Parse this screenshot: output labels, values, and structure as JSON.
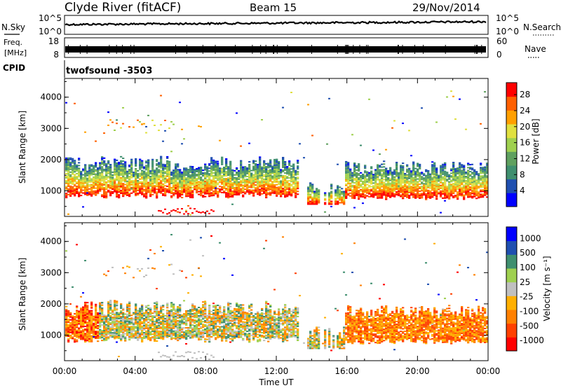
{
  "header": {
    "station": "Clyde River (fitACF)",
    "beam": "Beam 15",
    "date": "29/Nov/2014"
  },
  "panel_nsky": {
    "left_label": "N.Sky",
    "left_ticks": [
      "10^5",
      "10^0"
    ],
    "right_label": "N.Search",
    "right_ticks": [
      "10^5",
      "10^0"
    ]
  },
  "panel_freq": {
    "left_label_line1": "Freq.",
    "left_label_line2": "[MHz]",
    "left_ticks": [
      "18",
      "8"
    ],
    "right_label": "Nave",
    "right_ticks": [
      "60",
      "0"
    ]
  },
  "panel_cpid": {
    "label": "CPID",
    "program": "twofsound  -3503"
  },
  "colors": {
    "power": [
      "#0000ff",
      "#1f4fb0",
      "#3f8f6f",
      "#5fa05f",
      "#9fd04f",
      "#e0e040",
      "#ff9f00",
      "#ff6000",
      "#ff0000"
    ],
    "velocity": [
      "#0000ff",
      "#1f4fb0",
      "#3f8f6f",
      "#9fd04f",
      "#c0c0c0",
      "#ffaf00",
      "#ff8000",
      "#ff4000",
      "#ff0000"
    ]
  },
  "chart_data": [
    {
      "type": "heatmap",
      "name": "power",
      "ylabel": "Slant Range [km]",
      "xlim": [
        0,
        24
      ],
      "ylim": [
        180,
        4600
      ],
      "yticks": [
        "1000",
        "2000",
        "3000",
        "4000"
      ],
      "ytick_values": [
        1000,
        2000,
        3000,
        4000
      ],
      "colorbar_label": "Power [dB]",
      "colorbar_ticks": [
        "4",
        "8",
        "12",
        "16",
        "20",
        "24",
        "28"
      ],
      "colorbar_tick_values": [
        4,
        8,
        12,
        16,
        20,
        24,
        28
      ],
      "colorbar_range": [
        0,
        31
      ]
    },
    {
      "type": "heatmap",
      "name": "velocity",
      "ylabel": "Slant Range [km]",
      "xlabel": "Time UT",
      "xlim": [
        0,
        24
      ],
      "ylim": [
        180,
        4600
      ],
      "xticks": [
        "00:00",
        "04:00",
        "08:00",
        "12:00",
        "16:00",
        "20:00",
        "00:00"
      ],
      "xtick_values": [
        0,
        4,
        8,
        12,
        16,
        20,
        24
      ],
      "yticks": [
        "1000",
        "2000",
        "3000",
        "4000"
      ],
      "ytick_values": [
        1000,
        2000,
        3000,
        4000
      ],
      "colorbar_label": "Velocity [m s⁻¹]",
      "colorbar_ticks": [
        "1000",
        "500",
        "100",
        "25",
        "-25",
        "-100",
        "-500",
        "-1000"
      ]
    }
  ]
}
